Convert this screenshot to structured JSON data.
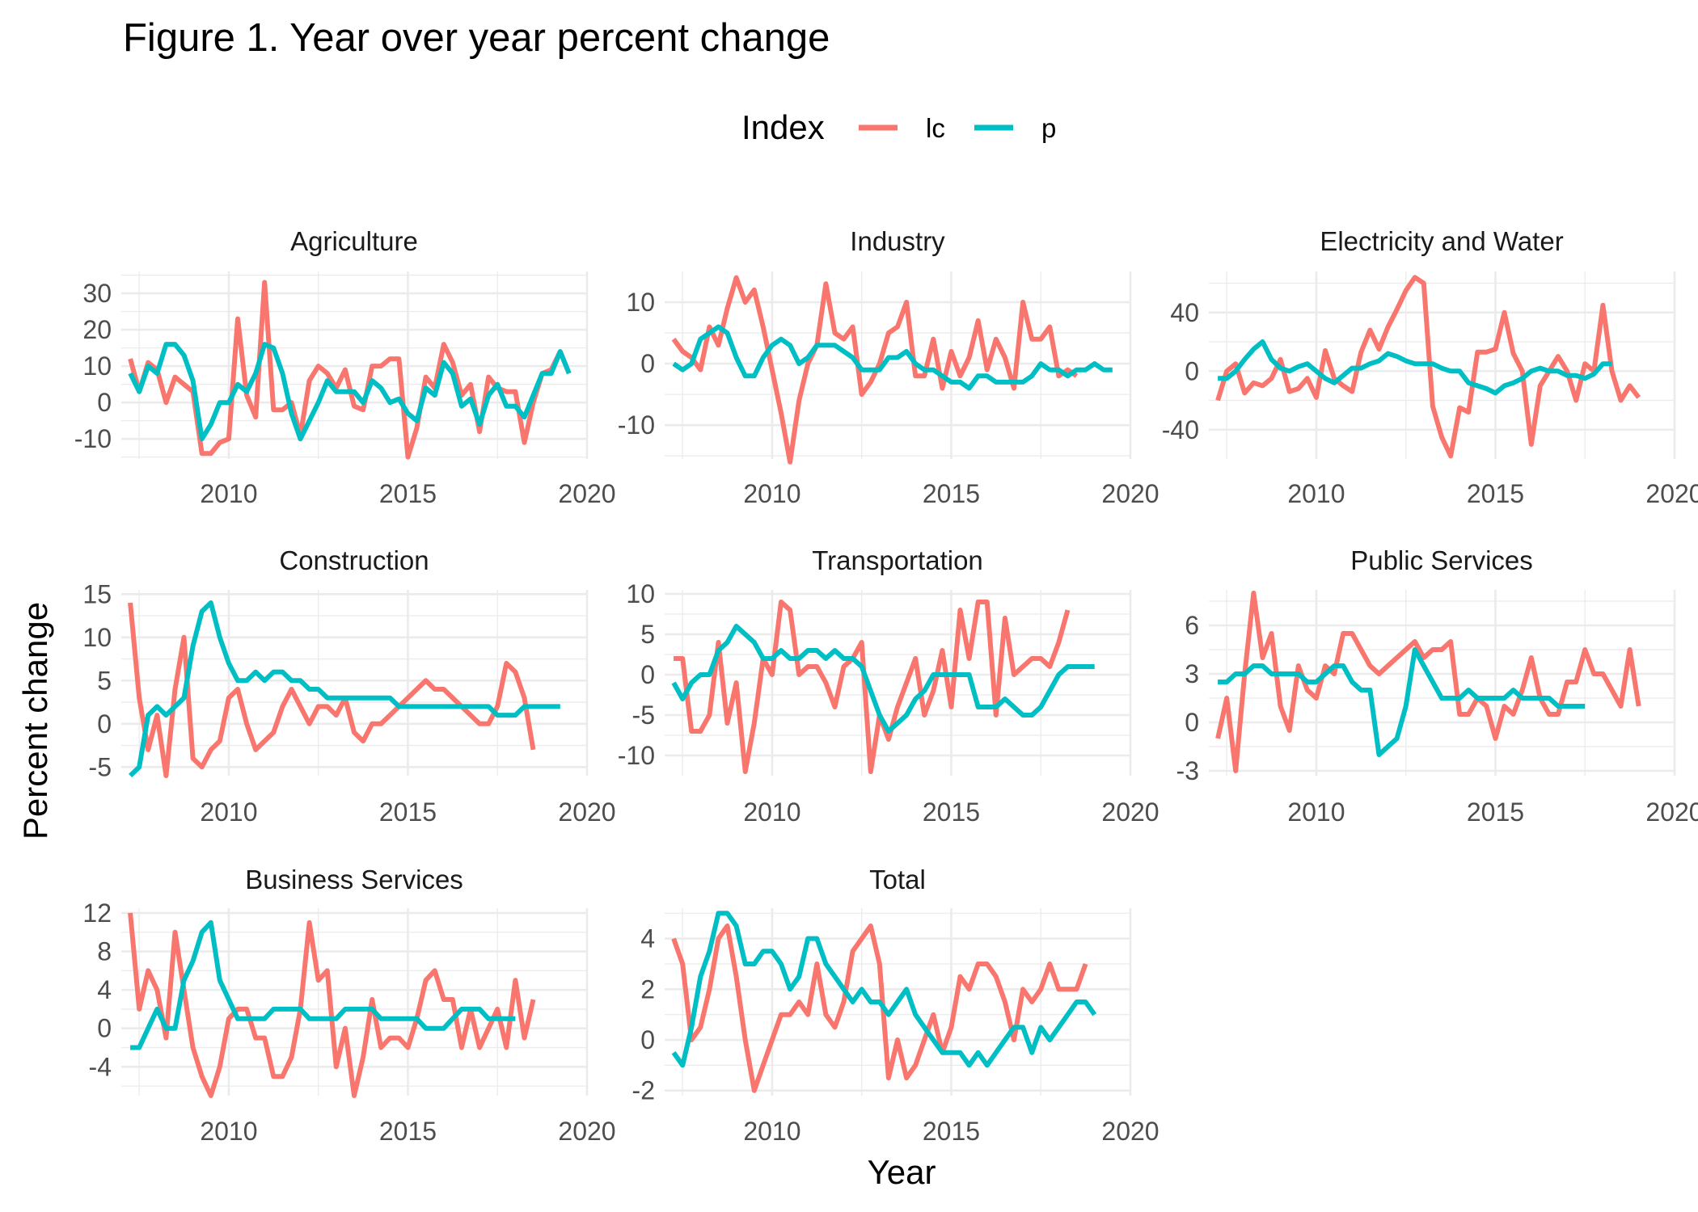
{
  "title": "Figure 1. Year over year percent change",
  "legend": {
    "title": "Index",
    "items": [
      {
        "label": "lc",
        "color": "#F8766D"
      },
      {
        "label": "p",
        "color": "#00BFC4"
      }
    ]
  },
  "axis": {
    "xlabel": "Year",
    "ylabel": "Percent change"
  },
  "chart_data": {
    "type": "line",
    "layout": "facet-wrap, 3 columns, free y scales",
    "x_ticks": [
      "2010",
      "2015",
      "2020"
    ],
    "x_range": [
      2007.0,
      2020.0
    ],
    "series_names": [
      "lc",
      "p"
    ],
    "series_colors": {
      "lc": "#F8766D",
      "p": "#00BFC4"
    },
    "facets": [
      {
        "name": "Agriculture",
        "ylim": [
          -15.5,
          36
        ],
        "y_ticks": [
          -10,
          0,
          10,
          20,
          30
        ],
        "series": [
          {
            "name": "lc",
            "x_start": 2007.25,
            "step": 0.25,
            "values": [
              12,
              3,
              11,
              9,
              0,
              7,
              5,
              3,
              -14,
              -14,
              -11,
              -10,
              23,
              2,
              -4,
              33,
              -2,
              -2,
              0,
              -9,
              6,
              10,
              8,
              4,
              9,
              -1,
              -2,
              10,
              10,
              12,
              12,
              -15,
              -7,
              7,
              4,
              16,
              11,
              2,
              5,
              -8,
              7,
              4,
              3,
              3,
              -11,
              0,
              8,
              9,
              14,
              8
            ]
          },
          {
            "name": "p",
            "x_start": 2007.25,
            "step": 0.25,
            "values": [
              8,
              3,
              10,
              8,
              16,
              16,
              13,
              6,
              -10,
              -6,
              0,
              0,
              5,
              3,
              8,
              16,
              15,
              8,
              -3,
              -10,
              -5,
              0,
              6,
              3,
              3,
              3,
              0,
              6,
              4,
              0,
              1,
              -3,
              -5,
              4,
              2,
              11,
              8,
              -1,
              1,
              -6,
              2,
              5,
              -1,
              -1,
              -4,
              2,
              8,
              8,
              14,
              8
            ]
          }
        ]
      },
      {
        "name": "Industry",
        "ylim": [
          -15.5,
          15
        ],
        "y_ticks": [
          -10,
          0,
          10
        ],
        "series": [
          {
            "name": "lc",
            "x_start": 2007.25,
            "step": 0.25,
            "values": [
              4,
              2,
              1,
              -1,
              6,
              3,
              9,
              14,
              10,
              12,
              6,
              -1,
              -8,
              -16,
              -6,
              0,
              3,
              13,
              5,
              4,
              6,
              -5,
              -3,
              0,
              5,
              6,
              10,
              -2,
              -2,
              4,
              -4,
              2,
              -2,
              1,
              7,
              -1,
              4,
              1,
              -4,
              10,
              4,
              4,
              6,
              -2,
              -1,
              -2
            ]
          },
          {
            "name": "p",
            "x_start": 2007.25,
            "step": 0.25,
            "values": [
              0,
              -1,
              0,
              4,
              5,
              6,
              5,
              1,
              -2,
              -2,
              1,
              3,
              4,
              3,
              0,
              1,
              3,
              3,
              3,
              2,
              1,
              -1,
              -1,
              -1,
              1,
              1,
              2,
              0,
              -1,
              -1,
              -2,
              -3,
              -3,
              -4,
              -2,
              -2,
              -3,
              -3,
              -3,
              -3,
              -2,
              0,
              -1,
              -1,
              -2,
              -1,
              -1,
              0,
              -1,
              -1
            ]
          }
        ]
      },
      {
        "name": "Electricity and Water",
        "ylim": [
          -60,
          68
        ],
        "y_ticks": [
          -40,
          0,
          40
        ],
        "series": [
          {
            "name": "lc",
            "x_start": 2007.25,
            "step": 0.25,
            "values": [
              -20,
              0,
              5,
              -15,
              -8,
              -10,
              -5,
              8,
              -14,
              -12,
              -5,
              -18,
              14,
              -5,
              -10,
              -14,
              13,
              28,
              15,
              30,
              42,
              55,
              64,
              60,
              -24,
              -45,
              -58,
              -25,
              -28,
              13,
              13,
              15,
              40,
              12,
              0,
              -50,
              -10,
              0,
              10,
              0,
              -20,
              5,
              0,
              45,
              0,
              -20,
              -10,
              -18
            ]
          },
          {
            "name": "p",
            "x_start": 2007.25,
            "step": 0.25,
            "values": [
              -5,
              -5,
              0,
              8,
              15,
              20,
              8,
              2,
              0,
              3,
              5,
              0,
              -5,
              -8,
              -3,
              2,
              2,
              5,
              7,
              12,
              10,
              7,
              5,
              5,
              5,
              2,
              0,
              0,
              -8,
              -10,
              -12,
              -15,
              -10,
              -8,
              -5,
              0,
              2,
              0,
              0,
              -3,
              -3,
              -5,
              -2,
              5,
              5
            ]
          }
        ]
      },
      {
        "name": "Construction",
        "ylim": [
          -6,
          15.5
        ],
        "y_ticks": [
          -5,
          0,
          5,
          10,
          15
        ],
        "series": [
          {
            "name": "lc",
            "x_start": 2007.25,
            "step": 0.25,
            "values": [
              14,
              3,
              -3,
              1,
              -6,
              4,
              10,
              -4,
              -5,
              -3,
              -2,
              3,
              4,
              0,
              -3,
              -2,
              -1,
              2,
              4,
              2,
              0,
              2,
              2,
              1,
              3,
              -1,
              -2,
              0,
              0,
              1,
              2,
              3,
              4,
              5,
              4,
              4,
              3,
              2,
              1,
              0,
              0,
              2,
              7,
              6,
              3,
              -3
            ]
          },
          {
            "name": "p",
            "x_start": 2007.25,
            "step": 0.25,
            "values": [
              -6,
              -5,
              1,
              2,
              1,
              2,
              3,
              9,
              13,
              14,
              10,
              7,
              5,
              5,
              6,
              5,
              6,
              6,
              5,
              5,
              4,
              4,
              3,
              3,
              3,
              3,
              3,
              3,
              3,
              3,
              2,
              2,
              2,
              2,
              2,
              2,
              2,
              2,
              2,
              2,
              2,
              1,
              1,
              1,
              2,
              2,
              2,
              2,
              2
            ]
          }
        ]
      },
      {
        "name": "Transportation",
        "ylim": [
          -12.5,
          10.5
        ],
        "y_ticks": [
          -10,
          -5,
          0,
          5,
          10
        ],
        "series": [
          {
            "name": "lc",
            "x_start": 2007.25,
            "step": 0.25,
            "values": [
              2,
              2,
              -7,
              -7,
              -5,
              4,
              -6,
              -1,
              -12,
              -6,
              2,
              0,
              9,
              8,
              0,
              1,
              1,
              -1,
              -4,
              1,
              2,
              4,
              -12,
              -5,
              -8,
              -4,
              -1,
              2,
              -5,
              -2,
              3,
              -4,
              8,
              2,
              9,
              9,
              -5,
              7,
              0,
              1,
              2,
              2,
              1,
              4,
              8
            ]
          },
          {
            "name": "p",
            "x_start": 2007.25,
            "step": 0.25,
            "values": [
              -1,
              -3,
              -1,
              0,
              0,
              3,
              4,
              6,
              5,
              4,
              2,
              2,
              3,
              2,
              2,
              3,
              3,
              2,
              3,
              2,
              2,
              1,
              -2,
              -5,
              -7,
              -6,
              -5,
              -3,
              -2,
              0,
              0,
              0,
              0,
              0,
              -4,
              -4,
              -4,
              -3,
              -4,
              -5,
              -5,
              -4,
              -2,
              0,
              1,
              1,
              1,
              1
            ]
          }
        ]
      },
      {
        "name": "Public Services",
        "ylim": [
          -3.3,
          8.2
        ],
        "y_ticks": [
          -3,
          0,
          3,
          6
        ],
        "series": [
          {
            "name": "lc",
            "x_start": 2007.25,
            "step": 0.25,
            "values": [
              -1,
              1.5,
              -3,
              3,
              8,
              4,
              5.5,
              1,
              -0.5,
              3.5,
              2,
              1.5,
              3.5,
              3,
              5.5,
              5.5,
              4.5,
              3.5,
              3,
              3.5,
              4,
              4.5,
              5,
              4,
              4.5,
              4.5,
              5,
              0.5,
              0.5,
              1.5,
              1,
              -1,
              1,
              0.5,
              2,
              4,
              1.5,
              0.5,
              0.5,
              2.5,
              2.5,
              4.5,
              3,
              3,
              2,
              1,
              4.5,
              1
            ]
          },
          {
            "name": "p",
            "x_start": 2007.25,
            "step": 0.25,
            "values": [
              2.5,
              2.5,
              3,
              3,
              3.5,
              3.5,
              3,
              3,
              3,
              3,
              2.5,
              2.5,
              3,
              3.5,
              3.5,
              2.5,
              2,
              2,
              -2,
              -1.5,
              -1,
              1,
              4.5,
              3.5,
              2.5,
              1.5,
              1.5,
              1.5,
              2,
              1.5,
              1.5,
              1.5,
              1.5,
              2,
              1.5,
              1.5,
              1.5,
              1.5,
              1,
              1,
              1,
              1
            ]
          }
        ]
      },
      {
        "name": "Business Services",
        "ylim": [
          -7,
          12.5
        ],
        "y_ticks": [
          -4,
          0,
          4,
          8,
          12
        ],
        "series": [
          {
            "name": "lc",
            "x_start": 2007.25,
            "step": 0.25,
            "values": [
              12,
              2,
              6,
              4,
              -1,
              10,
              4,
              -2,
              -5,
              -7,
              -4,
              1,
              2,
              2,
              -1,
              -1,
              -5,
              -5,
              -3,
              2,
              11,
              5,
              6,
              -4,
              0,
              -7,
              -3,
              3,
              -2,
              -1,
              -1,
              -2,
              1,
              5,
              6,
              3,
              3,
              -2,
              2,
              -2,
              0,
              2,
              -2,
              5,
              -1,
              3
            ]
          },
          {
            "name": "p",
            "x_start": 2007.25,
            "step": 0.25,
            "values": [
              -2,
              -2,
              0,
              2,
              0,
              0,
              5,
              7,
              10,
              11,
              5,
              3,
              1,
              1,
              1,
              1,
              2,
              2,
              2,
              2,
              1,
              1,
              1,
              1,
              2,
              2,
              2,
              2,
              1,
              1,
              1,
              1,
              1,
              0,
              0,
              0,
              1,
              2,
              2,
              2,
              1,
              1,
              1,
              1
            ]
          }
        ]
      },
      {
        "name": "Total",
        "ylim": [
          -2.2,
          5.2
        ],
        "y_ticks": [
          -2,
          0,
          2,
          4
        ],
        "series": [
          {
            "name": "lc",
            "x_start": 2007.25,
            "step": 0.25,
            "values": [
              4,
              3,
              0,
              0.5,
              2,
              4,
              4.5,
              2.5,
              0,
              -2,
              -1,
              0,
              1,
              1,
              1.5,
              1,
              3,
              1,
              0.5,
              1.5,
              3.5,
              4,
              4.5,
              3,
              -1.5,
              0,
              -1.5,
              -1,
              0,
              1,
              -0.5,
              0.5,
              2.5,
              2,
              3,
              3,
              2.5,
              1.5,
              0,
              2,
              1.5,
              2,
              3,
              2,
              2,
              2,
              3
            ]
          },
          {
            "name": "p",
            "x_start": 2007.25,
            "step": 0.25,
            "values": [
              -0.5,
              -1,
              0.5,
              2.5,
              3.5,
              5,
              5,
              4.5,
              3,
              3,
              3.5,
              3.5,
              3,
              2,
              2.5,
              4,
              4,
              3,
              2.5,
              2,
              1.5,
              2,
              1.5,
              1.5,
              1,
              1.5,
              2,
              1,
              0.5,
              0,
              -0.5,
              -0.5,
              -0.5,
              -1,
              -0.5,
              -1,
              -0.5,
              0,
              0.5,
              0.5,
              -0.5,
              0.5,
              0,
              0.5,
              1,
              1.5,
              1.5,
              1
            ]
          }
        ]
      }
    ]
  }
}
